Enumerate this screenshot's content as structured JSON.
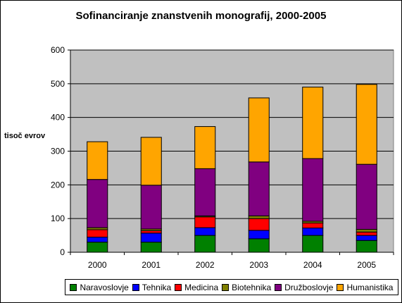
{
  "chart_data": {
    "type": "bar",
    "stacked": true,
    "title": "Sofinanciranje znanstvenih monografij, 2000-2005",
    "ylabel": "tisoč evrov",
    "xlabel": "",
    "categories": [
      "2000",
      "2001",
      "2002",
      "2003",
      "2004",
      "2005"
    ],
    "ylim": [
      0,
      600
    ],
    "yticks": [
      "0",
      "100",
      "200",
      "300",
      "400",
      "500",
      "600"
    ],
    "grid": true,
    "plot_background": "#c0c0c0",
    "legend_position": "bottom",
    "series": [
      {
        "name": "Naravoslovje",
        "color": "#008000",
        "values": [
          30,
          30,
          50,
          40,
          50,
          35
        ]
      },
      {
        "name": "Tehnika",
        "color": "#0000ff",
        "values": [
          15,
          27,
          23,
          25,
          22,
          15
        ]
      },
      {
        "name": "Medicina",
        "color": "#ff0000",
        "values": [
          22,
          7,
          32,
          35,
          15,
          10
        ]
      },
      {
        "name": "Biotehnika",
        "color": "#808000",
        "values": [
          6,
          5,
          3,
          8,
          5,
          8
        ]
      },
      {
        "name": "Družboslovje",
        "color": "#800080",
        "values": [
          143,
          130,
          140,
          160,
          186,
          193
        ]
      },
      {
        "name": "Humanistika",
        "color": "#ffa500",
        "values": [
          112,
          142,
          125,
          190,
          212,
          237
        ]
      }
    ]
  }
}
